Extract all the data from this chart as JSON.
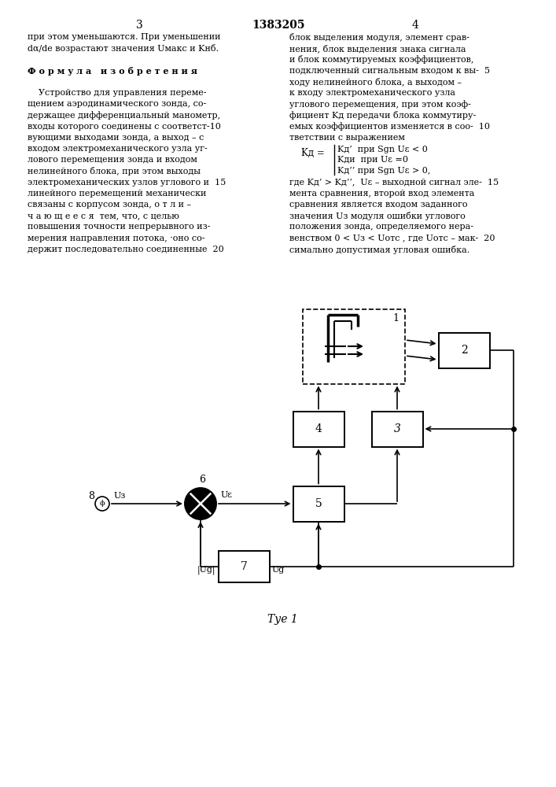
{
  "title": "1383205",
  "page_left": "3",
  "page_right": "4",
  "background_color": "#ffffff",
  "left_col_lines": [
    "при этом уменьшаются. При уменьшении",
    "dα/de возрастают значения Uмакс и Kнб.",
    "",
    "Ф о р м у л а   и з о б р е т е н и я",
    "",
    "    Устройство для управления переме-",
    "щением аэродинамического зонда, со-",
    "держащее дифференциальный манометр,",
    "входы которого соединены с соответст-10",
    "вующими выходами зонда, а выход – с",
    "входом электромеханического узла уг-",
    "лового перемещения зонда и входом",
    "нелинейного блока, при этом выходы",
    "электромеханических узлов углового и  15",
    "линейного перемещений механически",
    "связаны с корпусом зонда, о т л и –",
    "ч а ю щ е е с я  тем, что, с целью",
    "повышения точности непрерывного из-",
    "мерения направления потока, ·оно со-",
    "держит последовательно соединенные  20"
  ],
  "right_col_lines": [
    "блок выделения модуля, элемент срав-",
    "нения, блок выделения знака сигнала",
    "и блок коммутируемых коэффициентов,",
    "подключенный сигнальным входом к вы-  5",
    "ходу нелинейного блока, а выходом –",
    "к входу электромеханического узла",
    "углового перемещения, при этом коэф-",
    "фициент Kд передачи блока коммутиру-",
    "емых коэффициентов изменяется в соо-  10",
    "тветствии с выражением"
  ],
  "formula_label": "Kд =",
  "formula_line1": "Kд’ при Sgn Uε < 0",
  "formula_line2": "Kди при Uε =0",
  "formula_line3": "Kд’’ при Sgn Uε > 0,",
  "right_col_lines2": [
    "где Kд’ > Kд’’,  Uε – выходной сигнал эле-  15",
    "мента сравнения, второй вход элемента",
    "сравнения является входом заданного",
    "значения Uз модуля ошибки углового",
    "положения зонда, определяемого нера-",
    "венством 0 < Uз < Uотс , где Uотс – мак-  20",
    "симально допустимая угловая ошибка."
  ]
}
